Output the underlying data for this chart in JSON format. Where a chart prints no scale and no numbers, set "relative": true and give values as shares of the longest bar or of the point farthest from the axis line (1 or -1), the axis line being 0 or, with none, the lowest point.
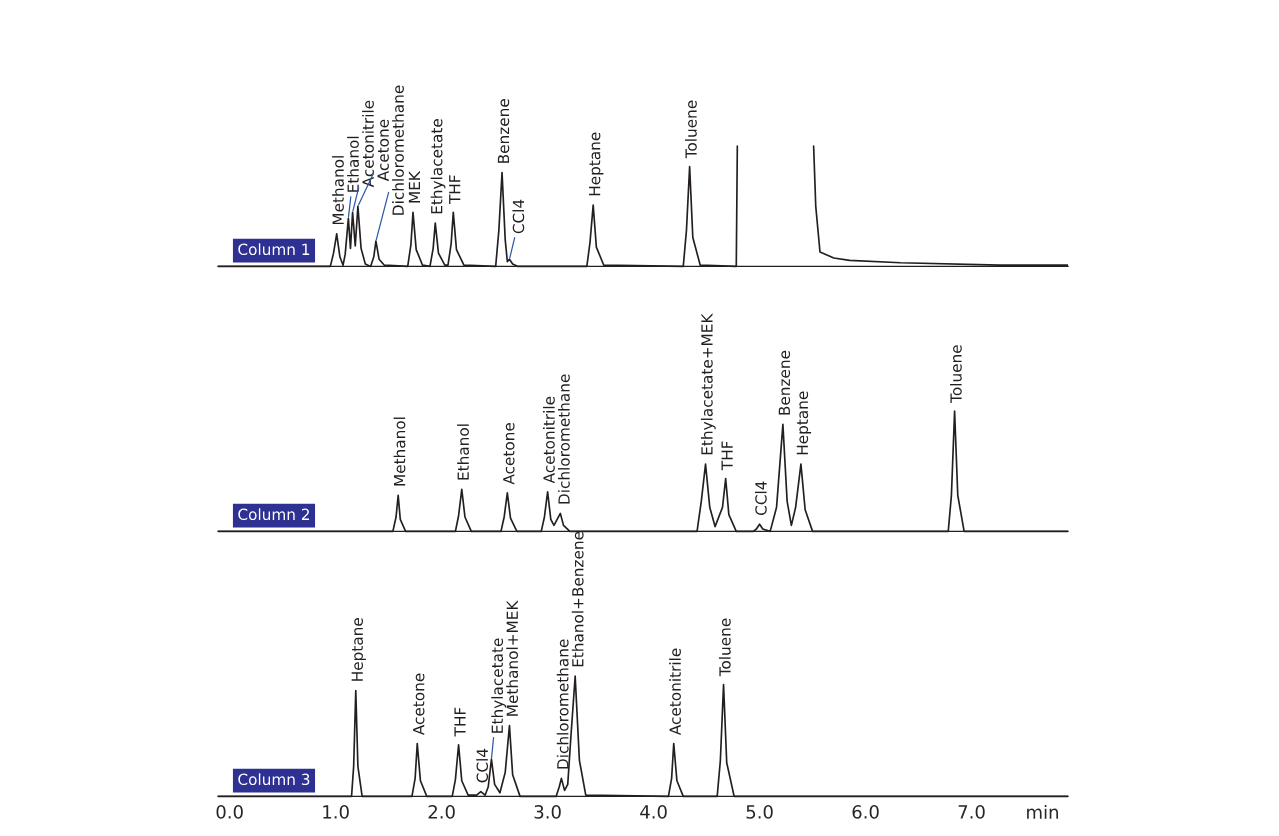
{
  "chart_data": [
    {
      "type": "line",
      "relative": true,
      "tick_labels": false,
      "xlim": [
        -0.11,
        7.91
      ],
      "x": [
        -0.11,
        0.95,
        0.98,
        1.01,
        1.04,
        1.07,
        1.09,
        1.12,
        1.14,
        1.16,
        1.185,
        1.21,
        1.24,
        1.28,
        1.33,
        1.36,
        1.38,
        1.41,
        1.46,
        1.68,
        1.71,
        1.73,
        1.76,
        1.82,
        1.89,
        1.92,
        1.94,
        1.97,
        2.03,
        2.06,
        2.09,
        2.11,
        2.14,
        2.21,
        2.51,
        2.54,
        2.57,
        2.6,
        2.62,
        2.64,
        2.67,
        2.72,
        3.37,
        3.4,
        3.43,
        3.46,
        3.53,
        4.28,
        4.31,
        4.34,
        4.37,
        4.44,
        4.78,
        4.79,
        5.1,
        5.51,
        5.53,
        5.57,
        5.7,
        5.85,
        6.33,
        7.27,
        7.91
      ],
      "series": [
        {
          "name": "Column 1",
          "color": "#231f20",
          "values": [
            0,
            0,
            0.11,
            0.27,
            0.08,
            0.01,
            0.1,
            0.4,
            0.15,
            0.45,
            0.17,
            0.5,
            0.15,
            0.02,
            0,
            0.08,
            0.21,
            0.06,
            0.01,
            0,
            0.18,
            0.45,
            0.14,
            0.01,
            0,
            0.15,
            0.36,
            0.11,
            0.01,
            0.01,
            0.19,
            0.45,
            0.14,
            0.01,
            0,
            0.3,
            0.78,
            0.22,
            0.04,
            0.06,
            0.02,
            0,
            0,
            0.2,
            0.51,
            0.16,
            0.01,
            0,
            0.3,
            0.83,
            0.24,
            0.01,
            0,
            1.0,
            null,
            1.0,
            0.5,
            0.12,
            0.07,
            0.05,
            0.03,
            0.01,
            0.01
          ]
        }
      ],
      "annotations": [
        {
          "text": "Methanol",
          "x": 1.01,
          "y": 0.27
        },
        {
          "text": "Ethanol",
          "x": 1.12,
          "y": 0.4
        },
        {
          "text": "Acetonitrile",
          "x": 1.16,
          "y": 0.45
        },
        {
          "text": "Acetone",
          "x": 1.21,
          "y": 0.5
        },
        {
          "text": "Dichloromethane",
          "x": 1.38,
          "y": 0.21
        },
        {
          "text": "MEK",
          "x": 1.73,
          "y": 0.45
        },
        {
          "text": "Ethylacetate",
          "x": 1.94,
          "y": 0.36
        },
        {
          "text": "THF",
          "x": 2.11,
          "y": 0.45
        },
        {
          "text": "Benzene",
          "x": 2.57,
          "y": 0.78
        },
        {
          "text": "CCl4",
          "x": 2.64,
          "y": 0.06
        },
        {
          "text": "Heptane",
          "x": 3.43,
          "y": 0.51
        },
        {
          "text": "Toluene",
          "x": 4.34,
          "y": 0.83
        }
      ]
    },
    {
      "type": "line",
      "relative": true,
      "tick_labels": false,
      "xlim": [
        -0.11,
        7.91
      ],
      "x": [
        -0.11,
        1.54,
        1.57,
        1.59,
        1.61,
        1.66,
        2.13,
        2.16,
        2.19,
        2.22,
        2.28,
        2.56,
        2.59,
        2.62,
        2.65,
        2.71,
        2.94,
        2.97,
        3.0,
        3.03,
        3.06,
        3.09,
        3.12,
        3.15,
        3.21,
        4.41,
        4.45,
        4.49,
        4.53,
        4.58,
        4.65,
        4.68,
        4.71,
        4.78,
        4.94,
        4.97,
        5.0,
        5.03,
        5.1,
        5.16,
        5.22,
        5.26,
        5.3,
        5.34,
        5.39,
        5.43,
        5.5,
        6.78,
        6.81,
        6.84,
        6.87,
        6.93,
        7.91
      ],
      "series": [
        {
          "name": "Column 2",
          "color": "#231f20",
          "values": [
            0,
            0,
            0.12,
            0.3,
            0.1,
            0,
            0,
            0.13,
            0.35,
            0.12,
            0,
            0,
            0.12,
            0.32,
            0.11,
            0,
            0,
            0.12,
            0.33,
            0.1,
            0.05,
            0.1,
            0.15,
            0.05,
            0,
            0,
            0.25,
            0.56,
            0.2,
            0.04,
            0.2,
            0.44,
            0.14,
            0,
            0,
            0.02,
            0.06,
            0.02,
            0,
            0.2,
            0.89,
            0.25,
            0.05,
            0.2,
            0.56,
            0.18,
            0,
            0,
            0.3,
            1.0,
            0.3,
            0,
            0
          ]
        }
      ],
      "annotations": [
        {
          "text": "Methanol",
          "x": 1.59,
          "y": 0.3
        },
        {
          "text": "Ethanol",
          "x": 2.19,
          "y": 0.35
        },
        {
          "text": "Acetone",
          "x": 2.62,
          "y": 0.32
        },
        {
          "text": "Acetonitrile",
          "x": 3.0,
          "y": 0.33
        },
        {
          "text": "Dichloromethane",
          "x": 3.12,
          "y": 0.15
        },
        {
          "text": "Ethylacetate+MEK",
          "x": 4.49,
          "y": 0.56
        },
        {
          "text": "THF",
          "x": 4.68,
          "y": 0.44
        },
        {
          "text": "CCl4",
          "x": 5.0,
          "y": 0.06
        },
        {
          "text": "Benzene",
          "x": 5.22,
          "y": 0.89
        },
        {
          "text": "Heptane",
          "x": 5.39,
          "y": 0.56
        },
        {
          "text": "Toluene",
          "x": 6.84,
          "y": 1.0
        }
      ]
    },
    {
      "type": "line",
      "relative": true,
      "tick_labels": "x",
      "xlim": [
        -0.11,
        7.91
      ],
      "xlabel": "min",
      "xticks": [
        {
          "value": 0,
          "label": "0.0"
        },
        {
          "value": 1,
          "label": "1.0"
        },
        {
          "value": 2,
          "label": "2.0"
        },
        {
          "value": 3,
          "label": "3.0"
        },
        {
          "value": 4,
          "label": "4.0"
        },
        {
          "value": 5,
          "label": "5.0"
        },
        {
          "value": 6,
          "label": "6.0"
        },
        {
          "value": 7,
          "label": "7.0"
        }
      ],
      "x": [
        -0.11,
        1.15,
        1.17,
        1.19,
        1.21,
        1.25,
        1.72,
        1.75,
        1.77,
        1.8,
        1.86,
        2.1,
        2.13,
        2.16,
        2.19,
        2.25,
        2.33,
        2.37,
        2.41,
        2.44,
        2.47,
        2.5,
        2.55,
        2.6,
        2.64,
        2.67,
        2.74,
        3.08,
        3.11,
        3.13,
        3.16,
        3.19,
        3.22,
        3.26,
        3.3,
        3.36,
        4.14,
        4.17,
        4.19,
        4.22,
        4.28,
        4.6,
        4.63,
        4.66,
        4.69,
        4.76,
        7.91
      ],
      "series": [
        {
          "name": "Column 3",
          "color": "#231f20",
          "values": [
            0,
            0,
            0.25,
            0.88,
            0.25,
            0,
            0,
            0.15,
            0.44,
            0.13,
            0,
            0,
            0.14,
            0.43,
            0.13,
            0.01,
            0.01,
            0.04,
            0.01,
            0.08,
            0.31,
            0.1,
            0.03,
            0.2,
            0.59,
            0.18,
            0,
            0,
            0.08,
            0.15,
            0.05,
            0.1,
            0.5,
            1.0,
            0.3,
            0.01,
            0,
            0.15,
            0.44,
            0.13,
            0,
            0,
            0.3,
            0.93,
            0.28,
            0,
            0
          ]
        }
      ],
      "annotations": [
        {
          "text": "Heptane",
          "x": 1.19,
          "y": 0.88
        },
        {
          "text": "Acetone",
          "x": 1.77,
          "y": 0.44
        },
        {
          "text": "THF",
          "x": 2.16,
          "y": 0.43
        },
        {
          "text": "CCl4",
          "x": 2.37,
          "y": 0.04
        },
        {
          "text": "Ethylacetate",
          "x": 2.47,
          "y": 0.31
        },
        {
          "text": "Methanol+MEK",
          "x": 2.64,
          "y": 0.59
        },
        {
          "text": "Dichloromethane",
          "x": 3.13,
          "y": 0.15
        },
        {
          "text": "Ethanol+Benzene",
          "x": 3.26,
          "y": 1.0
        },
        {
          "text": "Acetonitrile",
          "x": 4.19,
          "y": 0.44
        },
        {
          "text": "Toluene",
          "x": 4.66,
          "y": 0.93
        }
      ]
    }
  ]
}
